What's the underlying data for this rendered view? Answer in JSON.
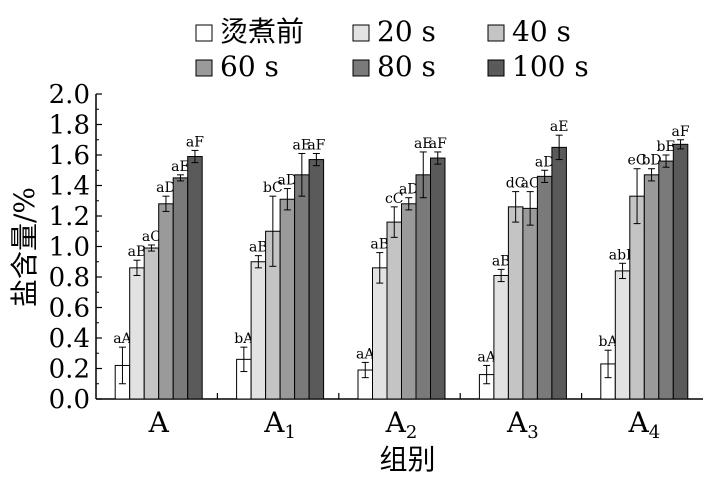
{
  "chart_data": {
    "type": "bar",
    "categories": [
      {
        "base": "A",
        "sub": ""
      },
      {
        "base": "A",
        "sub": "1"
      },
      {
        "base": "A",
        "sub": "2"
      },
      {
        "base": "A",
        "sub": "3"
      },
      {
        "base": "A",
        "sub": "4"
      }
    ],
    "series": [
      {
        "name": "烫煮前",
        "color": "#ffffff",
        "values": [
          0.22,
          0.26,
          0.19,
          0.16,
          0.23
        ],
        "errors": [
          0.12,
          0.08,
          0.05,
          0.06,
          0.09
        ],
        "labels": [
          "aA",
          "bA",
          "aA",
          "aA",
          "bA"
        ]
      },
      {
        "name": "20 s",
        "color": "#e2e2e2",
        "values": [
          0.86,
          0.9,
          0.86,
          0.81,
          0.84
        ],
        "errors": [
          0.05,
          0.04,
          0.1,
          0.04,
          0.05
        ],
        "labels": [
          "aB",
          "aB",
          "aB",
          "aB",
          "abB"
        ]
      },
      {
        "name": "40 s",
        "color": "#c4c4c4",
        "values": [
          0.99,
          1.1,
          1.16,
          1.26,
          1.33
        ],
        "errors": [
          0.02,
          0.23,
          0.1,
          0.1,
          0.18
        ],
        "labels": [
          "aC",
          "bC",
          "cC",
          "dC",
          "eC"
        ]
      },
      {
        "name": "60 s",
        "color": "#9a9a9a",
        "values": [
          1.28,
          1.31,
          1.28,
          1.25,
          1.47
        ],
        "errors": [
          0.05,
          0.07,
          0.04,
          0.11,
          0.04
        ],
        "labels": [
          "aD",
          "aD",
          "aD",
          "aC",
          "bD"
        ]
      },
      {
        "name": "80 s",
        "color": "#7a7a7a",
        "values": [
          1.45,
          1.47,
          1.47,
          1.46,
          1.56
        ],
        "errors": [
          0.02,
          0.14,
          0.15,
          0.04,
          0.04
        ],
        "labels": [
          "aE",
          "aE",
          "aE",
          "aD",
          "bE"
        ]
      },
      {
        "name": "100 s",
        "color": "#5a5a5a",
        "values": [
          1.59,
          1.57,
          1.58,
          1.65,
          1.67
        ],
        "errors": [
          0.04,
          0.04,
          0.04,
          0.08,
          0.03
        ],
        "labels": [
          "aF",
          "aF",
          "aF",
          "aE",
          "aF"
        ]
      }
    ],
    "xlabel": "组别",
    "ylabel": "盐含量/%",
    "ylim": [
      0,
      2.0
    ],
    "yticks": [
      "0.0",
      "0.2",
      "0.4",
      "0.6",
      "0.8",
      "1.0",
      "1.2",
      "1.4",
      "1.6",
      "1.8",
      "2.0"
    ],
    "legend": "top",
    "grid": false,
    "error_bars": true
  }
}
